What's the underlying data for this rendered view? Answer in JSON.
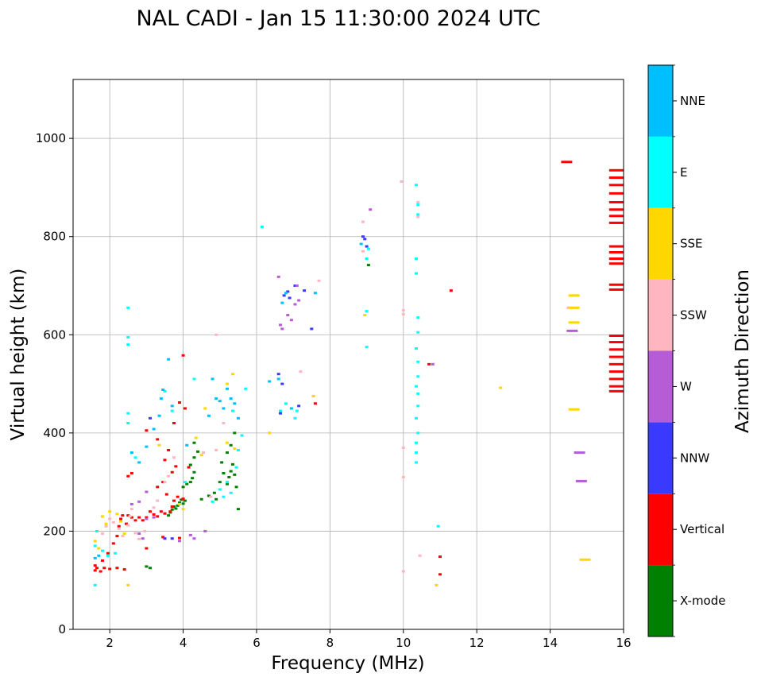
{
  "chart_data": {
    "type": "scatter",
    "title": "NAL CADI - Jan 15 11:30:00 2024 UTC",
    "xlabel": "Frequency (MHz)",
    "ylabel": "Virtual height (km)",
    "xlim": [
      1,
      16
    ],
    "ylim": [
      0,
      1120
    ],
    "xticks": [
      "2",
      "4",
      "6",
      "8",
      "10",
      "12",
      "14",
      "16"
    ],
    "xtick_values": [
      2,
      4,
      6,
      8,
      10,
      12,
      14,
      16
    ],
    "yticks": [
      "0",
      "200",
      "400",
      "600",
      "800",
      "1000"
    ],
    "ytick_values": [
      0,
      200,
      400,
      600,
      800,
      1000
    ],
    "grid": true,
    "colorbar": {
      "label": "Azimuth Direction",
      "categories": [
        {
          "label": "X-mode",
          "color": "#008000"
        },
        {
          "label": "Vertical",
          "color": "#ff0000"
        },
        {
          "label": "NNW",
          "color": "#3a3aff"
        },
        {
          "label": "W",
          "color": "#b55cd6"
        },
        {
          "label": "SSW",
          "color": "#ffb6c1"
        },
        {
          "label": "SSE",
          "color": "#ffd700"
        },
        {
          "label": "E",
          "color": "#00ffff"
        },
        {
          "label": "NNE",
          "color": "#00bfff"
        }
      ]
    },
    "series": [
      {
        "name": "X-mode",
        "points": [
          [
            3.0,
            128
          ],
          [
            3.1,
            125
          ],
          [
            3.6,
            232
          ],
          [
            3.65,
            238
          ],
          [
            3.7,
            244
          ],
          [
            3.75,
            250
          ],
          [
            3.8,
            246
          ],
          [
            3.85,
            252
          ],
          [
            3.9,
            258
          ],
          [
            3.95,
            264
          ],
          [
            4.0,
            256
          ],
          [
            4.05,
            262
          ],
          [
            4.0,
            290
          ],
          [
            4.1,
            296
          ],
          [
            4.2,
            300
          ],
          [
            4.25,
            308
          ],
          [
            4.3,
            320
          ],
          [
            4.2,
            335
          ],
          [
            4.3,
            350
          ],
          [
            4.4,
            362
          ],
          [
            4.3,
            380
          ],
          [
            4.5,
            265
          ],
          [
            4.7,
            272
          ],
          [
            4.85,
            278
          ],
          [
            4.9,
            265
          ],
          [
            5.0,
            300
          ],
          [
            5.05,
            340
          ],
          [
            5.1,
            318
          ],
          [
            5.2,
            296
          ],
          [
            5.25,
            310
          ],
          [
            5.3,
            322
          ],
          [
            5.35,
            336
          ],
          [
            5.4,
            315
          ],
          [
            5.45,
            290
          ],
          [
            5.5,
            245
          ],
          [
            5.2,
            360
          ],
          [
            5.3,
            375
          ],
          [
            5.4,
            400
          ],
          [
            9.05,
            742
          ]
        ]
      },
      {
        "name": "Vertical",
        "points": [
          [
            1.6,
            120
          ],
          [
            1.6,
            130
          ],
          [
            1.65,
            125
          ],
          [
            1.75,
            118
          ],
          [
            1.85,
            125
          ],
          [
            2.0,
            123
          ],
          [
            2.2,
            125
          ],
          [
            2.4,
            122
          ],
          [
            1.8,
            140
          ],
          [
            1.95,
            155
          ],
          [
            2.1,
            175
          ],
          [
            2.2,
            190
          ],
          [
            2.25,
            210
          ],
          [
            2.3,
            225
          ],
          [
            2.35,
            232
          ],
          [
            2.45,
            215
          ],
          [
            2.5,
            232
          ],
          [
            2.6,
            228
          ],
          [
            2.7,
            222
          ],
          [
            2.8,
            228
          ],
          [
            2.9,
            222
          ],
          [
            3.0,
            228
          ],
          [
            3.0,
            165
          ],
          [
            3.1,
            240
          ],
          [
            3.2,
            234
          ],
          [
            3.3,
            230
          ],
          [
            3.4,
            240
          ],
          [
            3.45,
            188
          ],
          [
            3.5,
            236
          ],
          [
            3.65,
            240
          ],
          [
            3.7,
            250
          ],
          [
            3.75,
            262
          ],
          [
            3.85,
            270
          ],
          [
            3.9,
            186
          ],
          [
            4.0,
            266
          ],
          [
            4.05,
            450
          ],
          [
            4.15,
            330
          ],
          [
            3.3,
            290
          ],
          [
            3.45,
            300
          ],
          [
            3.5,
            345
          ],
          [
            3.6,
            365
          ],
          [
            3.7,
            320
          ],
          [
            3.75,
            420
          ],
          [
            3.9,
            462
          ],
          [
            4.0,
            558
          ],
          [
            2.5,
            312
          ],
          [
            2.6,
            318
          ],
          [
            3.0,
            405
          ],
          [
            3.3,
            387
          ],
          [
            3.8,
            332
          ],
          [
            3.55,
            275
          ],
          [
            7.6,
            460
          ],
          [
            10.7,
            540
          ],
          [
            11.3,
            690
          ],
          [
            11.0,
            148
          ],
          [
            11.0,
            112
          ],
          [
            14.45,
            952
          ],
          [
            15.8,
            935
          ],
          [
            15.8,
            920
          ],
          [
            15.8,
            905
          ],
          [
            15.8,
            888
          ],
          [
            15.8,
            870
          ],
          [
            15.8,
            855
          ],
          [
            15.8,
            842
          ],
          [
            15.8,
            828
          ],
          [
            15.8,
            780
          ],
          [
            15.8,
            768
          ],
          [
            15.8,
            755
          ],
          [
            15.8,
            745
          ],
          [
            15.8,
            702
          ],
          [
            15.8,
            692
          ],
          [
            15.8,
            598
          ],
          [
            15.8,
            585
          ],
          [
            15.8,
            570
          ],
          [
            15.8,
            555
          ],
          [
            15.8,
            540
          ],
          [
            15.8,
            525
          ],
          [
            15.8,
            510
          ],
          [
            15.8,
            495
          ],
          [
            15.8,
            485
          ]
        ]
      },
      {
        "name": "NNW",
        "points": [
          [
            3.1,
            430
          ],
          [
            3.5,
            185
          ],
          [
            3.7,
            185
          ],
          [
            6.6,
            520
          ],
          [
            6.7,
            500
          ],
          [
            6.65,
            440
          ],
          [
            6.75,
            680
          ],
          [
            6.85,
            688
          ],
          [
            6.9,
            675
          ],
          [
            7.05,
            700
          ],
          [
            7.3,
            690
          ],
          [
            7.15,
            455
          ],
          [
            8.9,
            800
          ],
          [
            8.95,
            795
          ],
          [
            9.0,
            780
          ],
          [
            7.5,
            612
          ]
        ]
      },
      {
        "name": "W",
        "points": [
          [
            2.8,
            195
          ],
          [
            2.9,
            185
          ],
          [
            3.0,
            225
          ],
          [
            3.2,
            228
          ],
          [
            3.9,
            180
          ],
          [
            4.3,
            185
          ],
          [
            4.6,
            200
          ],
          [
            2.6,
            255
          ],
          [
            2.8,
            260
          ],
          [
            3.0,
            280
          ],
          [
            4.2,
            192
          ],
          [
            6.65,
            620
          ],
          [
            6.7,
            612
          ],
          [
            6.85,
            640
          ],
          [
            6.95,
            630
          ],
          [
            7.05,
            662
          ],
          [
            7.1,
            700
          ],
          [
            7.15,
            670
          ],
          [
            6.6,
            718
          ],
          [
            9.1,
            855
          ],
          [
            10.8,
            540
          ],
          [
            14.6,
            608
          ],
          [
            14.8,
            360
          ],
          [
            14.85,
            302
          ]
        ]
      },
      {
        "name": "SSW",
        "points": [
          [
            1.8,
            195
          ],
          [
            1.9,
            210
          ],
          [
            2.0,
            225
          ],
          [
            2.1,
            218
          ],
          [
            2.25,
            205
          ],
          [
            2.35,
            190
          ],
          [
            2.5,
            212
          ],
          [
            2.55,
            230
          ],
          [
            2.6,
            245
          ],
          [
            2.7,
            196
          ],
          [
            2.8,
            184
          ],
          [
            2.95,
            200
          ],
          [
            3.2,
            248
          ],
          [
            3.3,
            262
          ],
          [
            3.5,
            300
          ],
          [
            3.6,
            312
          ],
          [
            3.75,
            350
          ],
          [
            4.55,
            360
          ],
          [
            4.75,
            270
          ],
          [
            4.9,
            365
          ],
          [
            5.1,
            420
          ],
          [
            4.9,
            600
          ],
          [
            7.2,
            525
          ],
          [
            7.7,
            710
          ],
          [
            8.9,
            830
          ],
          [
            8.9,
            770
          ],
          [
            9.95,
            912
          ],
          [
            10.4,
            870
          ],
          [
            10.4,
            840
          ],
          [
            10.0,
            650
          ],
          [
            10.0,
            642
          ],
          [
            10.0,
            370
          ],
          [
            10.0,
            310
          ],
          [
            10.0,
            118
          ],
          [
            10.35,
            340
          ],
          [
            10.45,
            150
          ],
          [
            14.6,
            655
          ]
        ]
      },
      {
        "name": "SSE",
        "points": [
          [
            1.6,
            180
          ],
          [
            1.7,
            165
          ],
          [
            1.8,
            230
          ],
          [
            1.9,
            215
          ],
          [
            2.0,
            240
          ],
          [
            2.2,
            235
          ],
          [
            2.3,
            220
          ],
          [
            2.4,
            195
          ],
          [
            2.5,
            90
          ],
          [
            3.35,
            375
          ],
          [
            3.9,
            255
          ],
          [
            4.0,
            245
          ],
          [
            4.35,
            390
          ],
          [
            4.5,
            355
          ],
          [
            4.6,
            450
          ],
          [
            5.2,
            500
          ],
          [
            5.35,
            520
          ],
          [
            5.2,
            380
          ],
          [
            5.4,
            368
          ],
          [
            6.35,
            400
          ],
          [
            7.55,
            475
          ],
          [
            8.95,
            640
          ],
          [
            10.9,
            90
          ],
          [
            12.65,
            492
          ],
          [
            14.65,
            680
          ],
          [
            14.65,
            655
          ],
          [
            14.65,
            625
          ],
          [
            14.65,
            448
          ],
          [
            14.95,
            142
          ]
        ]
      },
      {
        "name": "E",
        "points": [
          [
            1.6,
            90
          ],
          [
            1.6,
            170
          ],
          [
            1.65,
            200
          ],
          [
            1.8,
            160
          ],
          [
            1.95,
            150
          ],
          [
            2.15,
            155
          ],
          [
            2.5,
            420
          ],
          [
            2.5,
            440
          ],
          [
            2.5,
            580
          ],
          [
            2.5,
            595
          ],
          [
            2.5,
            655
          ],
          [
            2.7,
            350
          ],
          [
            3.5,
            485
          ],
          [
            3.7,
            445
          ],
          [
            4.05,
            300
          ],
          [
            4.3,
            510
          ],
          [
            4.8,
            260
          ],
          [
            5.0,
            285
          ],
          [
            5.1,
            270
          ],
          [
            5.2,
            300
          ],
          [
            5.3,
            278
          ],
          [
            5.45,
            330
          ],
          [
            5.5,
            365
          ],
          [
            5.35,
            445
          ],
          [
            5.6,
            395
          ],
          [
            5.7,
            490
          ],
          [
            6.15,
            820
          ],
          [
            6.65,
            445
          ],
          [
            6.8,
            460
          ],
          [
            7.05,
            430
          ],
          [
            7.1,
            445
          ],
          [
            9.0,
            755
          ],
          [
            9.0,
            648
          ],
          [
            9.0,
            575
          ],
          [
            9.05,
            775
          ],
          [
            10.35,
            905
          ],
          [
            10.4,
            865
          ],
          [
            10.4,
            845
          ],
          [
            10.35,
            755
          ],
          [
            10.35,
            725
          ],
          [
            10.4,
            635
          ],
          [
            10.4,
            605
          ],
          [
            10.35,
            572
          ],
          [
            10.4,
            545
          ],
          [
            10.4,
            515
          ],
          [
            10.35,
            495
          ],
          [
            10.4,
            480
          ],
          [
            10.4,
            455
          ],
          [
            10.35,
            430
          ],
          [
            10.4,
            400
          ],
          [
            10.35,
            380
          ],
          [
            10.35,
            360
          ],
          [
            10.35,
            340
          ],
          [
            10.95,
            210
          ]
        ]
      },
      {
        "name": "NNE",
        "points": [
          [
            1.6,
            145
          ],
          [
            1.7,
            150
          ],
          [
            2.6,
            360
          ],
          [
            2.8,
            340
          ],
          [
            3.0,
            372
          ],
          [
            3.2,
            408
          ],
          [
            3.35,
            435
          ],
          [
            3.4,
            470
          ],
          [
            3.45,
            488
          ],
          [
            3.6,
            550
          ],
          [
            3.7,
            455
          ],
          [
            4.1,
            375
          ],
          [
            4.7,
            435
          ],
          [
            4.8,
            510
          ],
          [
            4.9,
            470
          ],
          [
            5.0,
            465
          ],
          [
            5.1,
            450
          ],
          [
            5.2,
            490
          ],
          [
            5.3,
            470
          ],
          [
            5.4,
            460
          ],
          [
            5.5,
            430
          ],
          [
            6.35,
            505
          ],
          [
            6.6,
            510
          ],
          [
            6.7,
            665
          ],
          [
            6.8,
            685
          ],
          [
            6.95,
            450
          ],
          [
            7.6,
            685
          ],
          [
            8.85,
            785
          ]
        ]
      }
    ]
  }
}
